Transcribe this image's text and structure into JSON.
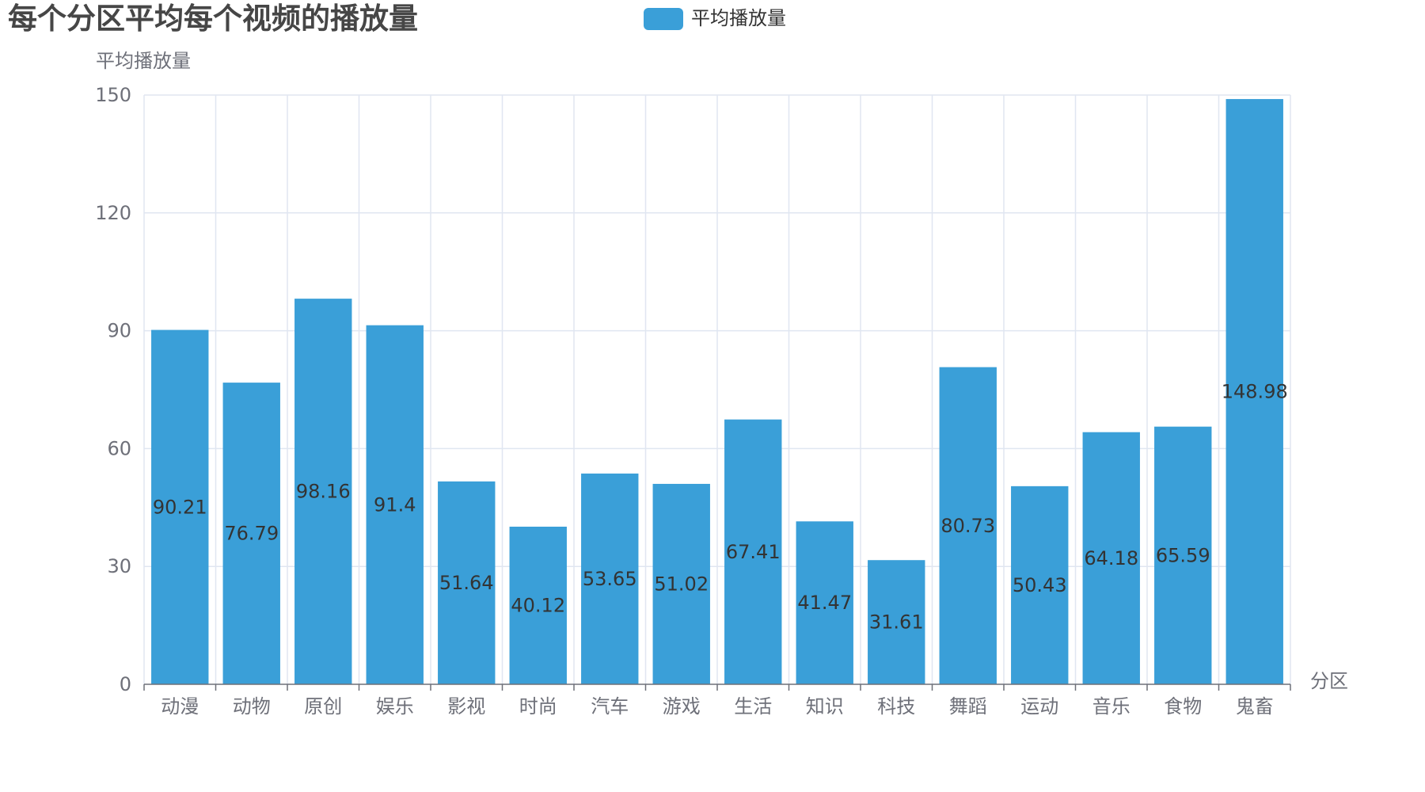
{
  "title": "每个分区平均每个视频的播放量",
  "legend": {
    "label": "平均播放量",
    "color": "#3a9fd8"
  },
  "chart_data": {
    "type": "bar",
    "title": "每个分区平均每个视频的播放量",
    "xlabel": "分区",
    "ylabel": "平均播放量",
    "ylim": [
      0,
      150
    ],
    "yticks": [
      0,
      30,
      60,
      90,
      120,
      150
    ],
    "grid": true,
    "legend_position": "top-center",
    "categories": [
      "动漫",
      "动物",
      "原创",
      "娱乐",
      "影视",
      "时尚",
      "汽车",
      "游戏",
      "生活",
      "知识",
      "科技",
      "舞蹈",
      "运动",
      "音乐",
      "食物",
      "鬼畜"
    ],
    "series": [
      {
        "name": "平均播放量",
        "color": "#3a9fd8",
        "values": [
          90.21,
          76.79,
          98.16,
          91.4,
          51.64,
          40.12,
          53.65,
          51.02,
          67.41,
          41.47,
          31.61,
          80.73,
          50.43,
          64.18,
          65.59,
          148.98
        ]
      }
    ]
  }
}
